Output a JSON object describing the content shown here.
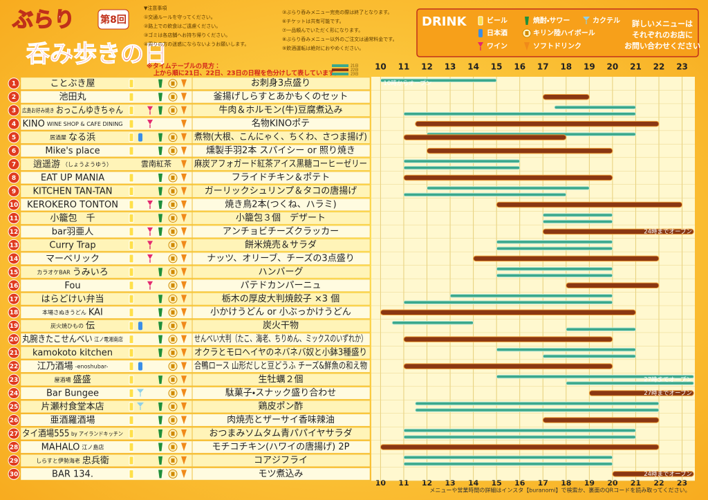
{
  "header": {
    "title_top": "ぶらり",
    "title_main": "呑み歩きの日",
    "edition": "第8回",
    "notes_left": [
      "▼注意事項",
      "①交通ルールを守ってください。",
      "②路上での飲食はご遠慮ください。",
      "③ゴミは各店舗へお持ち帰りください。",
      "④周りの方の迷惑にならないようお願いします。"
    ],
    "notes_right": [
      "③ぶらり呑みメニュー完売の際は終了となります。",
      "⑥チケットは共有可能です。",
      "⑦一品頼んでいただく形になります。",
      "⑧ぶらり呑みメニュー以外のご注文は通常料金です。",
      "⑨飲酒運転は絶対におやめください。"
    ],
    "timetable_title": "※タイムテーブルの見方：",
    "timetable_note": "上から順に21日、22日、23日の日程を色分けして表しています。",
    "days": [
      "21日",
      "22日",
      "23日"
    ],
    "drink_title": "DRINK",
    "drink_legend": [
      "ビール",
      "日本酒",
      "ワイン",
      "焼酎・サワー",
      "キリン陸ハイボール",
      "ソフトドリンク",
      "カクテル"
    ],
    "contact": [
      "詳しいメニューは",
      "それぞれのお店に",
      "お問い合わせください"
    ]
  },
  "hours": [
    10,
    11,
    12,
    13,
    14,
    15,
    16,
    17,
    18,
    19,
    20,
    21,
    22,
    23
  ],
  "xlim": [
    9.6,
    23.55
  ],
  "day_colors": [
    "#3aa88c",
    "#8a3712",
    "#3aa88c"
  ],
  "rows": [
    {
      "no": 1,
      "name": "ことぶき屋",
      "menu": "お刺身3点盛り",
      "days": [
        [
          10,
          15
        ],
        null,
        null
      ],
      "note": "10時からオープン"
    },
    {
      "no": 2,
      "name": "池田丸",
      "menu": "釜揚げしらすとあかもくのセット",
      "days": [
        null,
        [
          17,
          19
        ],
        null
      ]
    },
    {
      "no": 3,
      "prefix": "広島お好み焼き",
      "name": "おっこんゆきちゃん",
      "menu": "牛肉＆ホルモン(牛)豆腐煮込み",
      "days": [
        [
          17.5,
          21
        ],
        null,
        [
          11,
          21
        ]
      ]
    },
    {
      "no": 4,
      "name": "KINO",
      "suffix": "WINE SHOP & CAFE DINING",
      "menu": "名物KINOポテ",
      "days": [
        null,
        [
          11.5,
          22
        ],
        null
      ]
    },
    {
      "no": 5,
      "prefix": "居酒屋",
      "name": "なる浜",
      "menu": "煮物(大根、こんにゃく、ちくわ、さつま揚げ)",
      "days": [
        [
          12,
          21
        ],
        [
          11,
          18
        ],
        null
      ]
    },
    {
      "no": 6,
      "name": "Mike's place",
      "menu": "燻製手羽2本 スパイシー or 照り焼き",
      "days": [
        null,
        [
          12,
          20
        ],
        null
      ]
    },
    {
      "no": 7,
      "name": "逍遥游",
      "suffix": "（しょうようゆう）",
      "drink_note": "雲南紅茶",
      "menu": "麻炭アフォガード紅茶アイス黒糖コーヒーゼリー",
      "days": [
        [
          11,
          16
        ],
        null,
        [
          11,
          16
        ]
      ]
    },
    {
      "no": 8,
      "name": "EAT UP MANIA",
      "menu": "フライドチキン＆ポテト",
      "days": [
        null,
        [
          11,
          20
        ],
        null
      ]
    },
    {
      "no": 9,
      "name": "KITCHEN TAN-TAN",
      "menu": "ガーリックシュリンプ＆タコの唐揚げ",
      "days": [
        [
          12,
          19
        ],
        null,
        [
          11,
          18
        ]
      ]
    },
    {
      "no": 10,
      "name": "KEROKERO TONTON",
      "menu": "焼き鳥2本(つくね、ハラミ)",
      "days": [
        null,
        [
          15,
          23
        ],
        null
      ]
    },
    {
      "no": 11,
      "name": "小籠包　千",
      "menu": "小籠包３個　デザート",
      "days": [
        [
          17,
          20
        ],
        null,
        [
          17,
          20
        ]
      ]
    },
    {
      "no": 12,
      "name": "bar羽亜人",
      "menu": "アンチョビチーズクラッカー",
      "days": [
        null,
        [
          17,
          23.5
        ],
        null
      ],
      "note": "24時までオープン"
    },
    {
      "no": 13,
      "name": "Curry Trap",
      "menu": "餅米焼売＆サラダ",
      "days": [
        [
          15,
          20
        ],
        null,
        [
          15,
          20
        ]
      ]
    },
    {
      "no": 14,
      "name": "マーベリック",
      "menu": "ナッツ、オリーブ、チーズの3点盛り",
      "days": [
        null,
        [
          14,
          22
        ],
        null
      ]
    },
    {
      "no": 15,
      "prefix": "カラオケBAR",
      "name": "うみいろ",
      "menu": "ハンバーグ",
      "days": [
        [
          15,
          20
        ],
        null,
        [
          15,
          20
        ]
      ]
    },
    {
      "no": 16,
      "name": "Fou",
      "menu": "パテドカンパーニュ",
      "days": [
        null,
        [
          18,
          22
        ],
        null
      ]
    },
    {
      "no": 17,
      "name": "はらどけい弁当",
      "menu": "栃木の厚皮大判焼餃子 ×3 個",
      "days": [
        [
          13,
          20
        ],
        null,
        [
          11,
          20
        ]
      ]
    },
    {
      "no": 18,
      "prefix": "本場さぬきうどん",
      "name": "KAI",
      "menu": "小かけうどん or 小ぶっかけうどん",
      "days": [
        null,
        [
          10,
          21
        ],
        null
      ]
    },
    {
      "no": 19,
      "prefix": "炭火焼ひもの",
      "name": "伝",
      "menu": "炭火干物",
      "days": [
        [
          10.5,
          14
        ],
        null,
        [
          18,
          21
        ]
      ]
    },
    {
      "no": 20,
      "name": "丸腕きたこせんべい",
      "suffix": "江ノ電湘南店",
      "menu": "せんべい大判（たこ、海老、ちりめん、ミックスのいずれか）",
      "days": [
        null,
        [
          11,
          20
        ],
        null
      ]
    },
    {
      "no": 21,
      "name": "kamokoto kitchen",
      "menu": "オクラとモロヘイヤのネバネバ奴と小鉢3種盛り",
      "days": [
        [
          15,
          21
        ],
        null,
        [
          17,
          21
        ]
      ]
    },
    {
      "no": 22,
      "name": "江乃酒場",
      "suffix": "-enoshubar-",
      "menu": "合鴨ロース 山形だしと豆どうふ チーズ&鮮魚の和え物",
      "days": [
        null,
        [
          11,
          20
        ],
        null
      ]
    },
    {
      "no": 23,
      "prefix": "屋酒場",
      "name": "盛盛",
      "menu": "生牡蠣２個",
      "days": [
        [
          15,
          23.5
        ],
        null,
        [
          18,
          23.5
        ]
      ],
      "note": "27時までオープン"
    },
    {
      "no": 24,
      "name": "Bar Bungee",
      "menu": "駄菓子・スナック盛り合わせ",
      "days": [
        null,
        [
          19,
          23.5
        ],
        null
      ],
      "note": "27時までオープン"
    },
    {
      "no": 25,
      "name": "片瀬村食堂本店",
      "menu": "鶏皮ポン酢",
      "days": [
        [
          11.5,
          22
        ],
        null,
        [
          11.5,
          22
        ]
      ]
    },
    {
      "no": 26,
      "name": "亜酒羅酒場",
      "menu": "肉焼売とザーサイ香味辣油",
      "days": [
        null,
        [
          17,
          22
        ],
        null
      ]
    },
    {
      "no": 27,
      "name": "タイ酒場555",
      "suffix": "by アイランドキッチン",
      "menu": "おつまみソムタム青パパイヤサラダ",
      "days": [
        [
          11,
          21
        ],
        null,
        [
          11,
          21
        ]
      ]
    },
    {
      "no": 28,
      "name": "MAHALO",
      "suffix": "江ノ島店",
      "menu": "モチコチキン(ハワイの唐揚げ) 2P",
      "days": [
        null,
        [
          10,
          22
        ],
        null
      ]
    },
    {
      "no": 29,
      "prefix": "しらすと伊勢海老",
      "name": "忠兵衛",
      "menu": "コアジフライ",
      "days": [
        [
          11,
          20
        ],
        null,
        [
          11,
          20
        ]
      ]
    },
    {
      "no": 30,
      "name": "BAR 134.",
      "menu": "モツ煮込み",
      "days": [
        null,
        [
          20,
          23.5
        ],
        null
      ],
      "note": "24時までオープン"
    }
  ],
  "footer": "メニューや営業時間の詳細はインスタ【buranomi】で検索か、裏面のQRコードを読み取ってください。"
}
